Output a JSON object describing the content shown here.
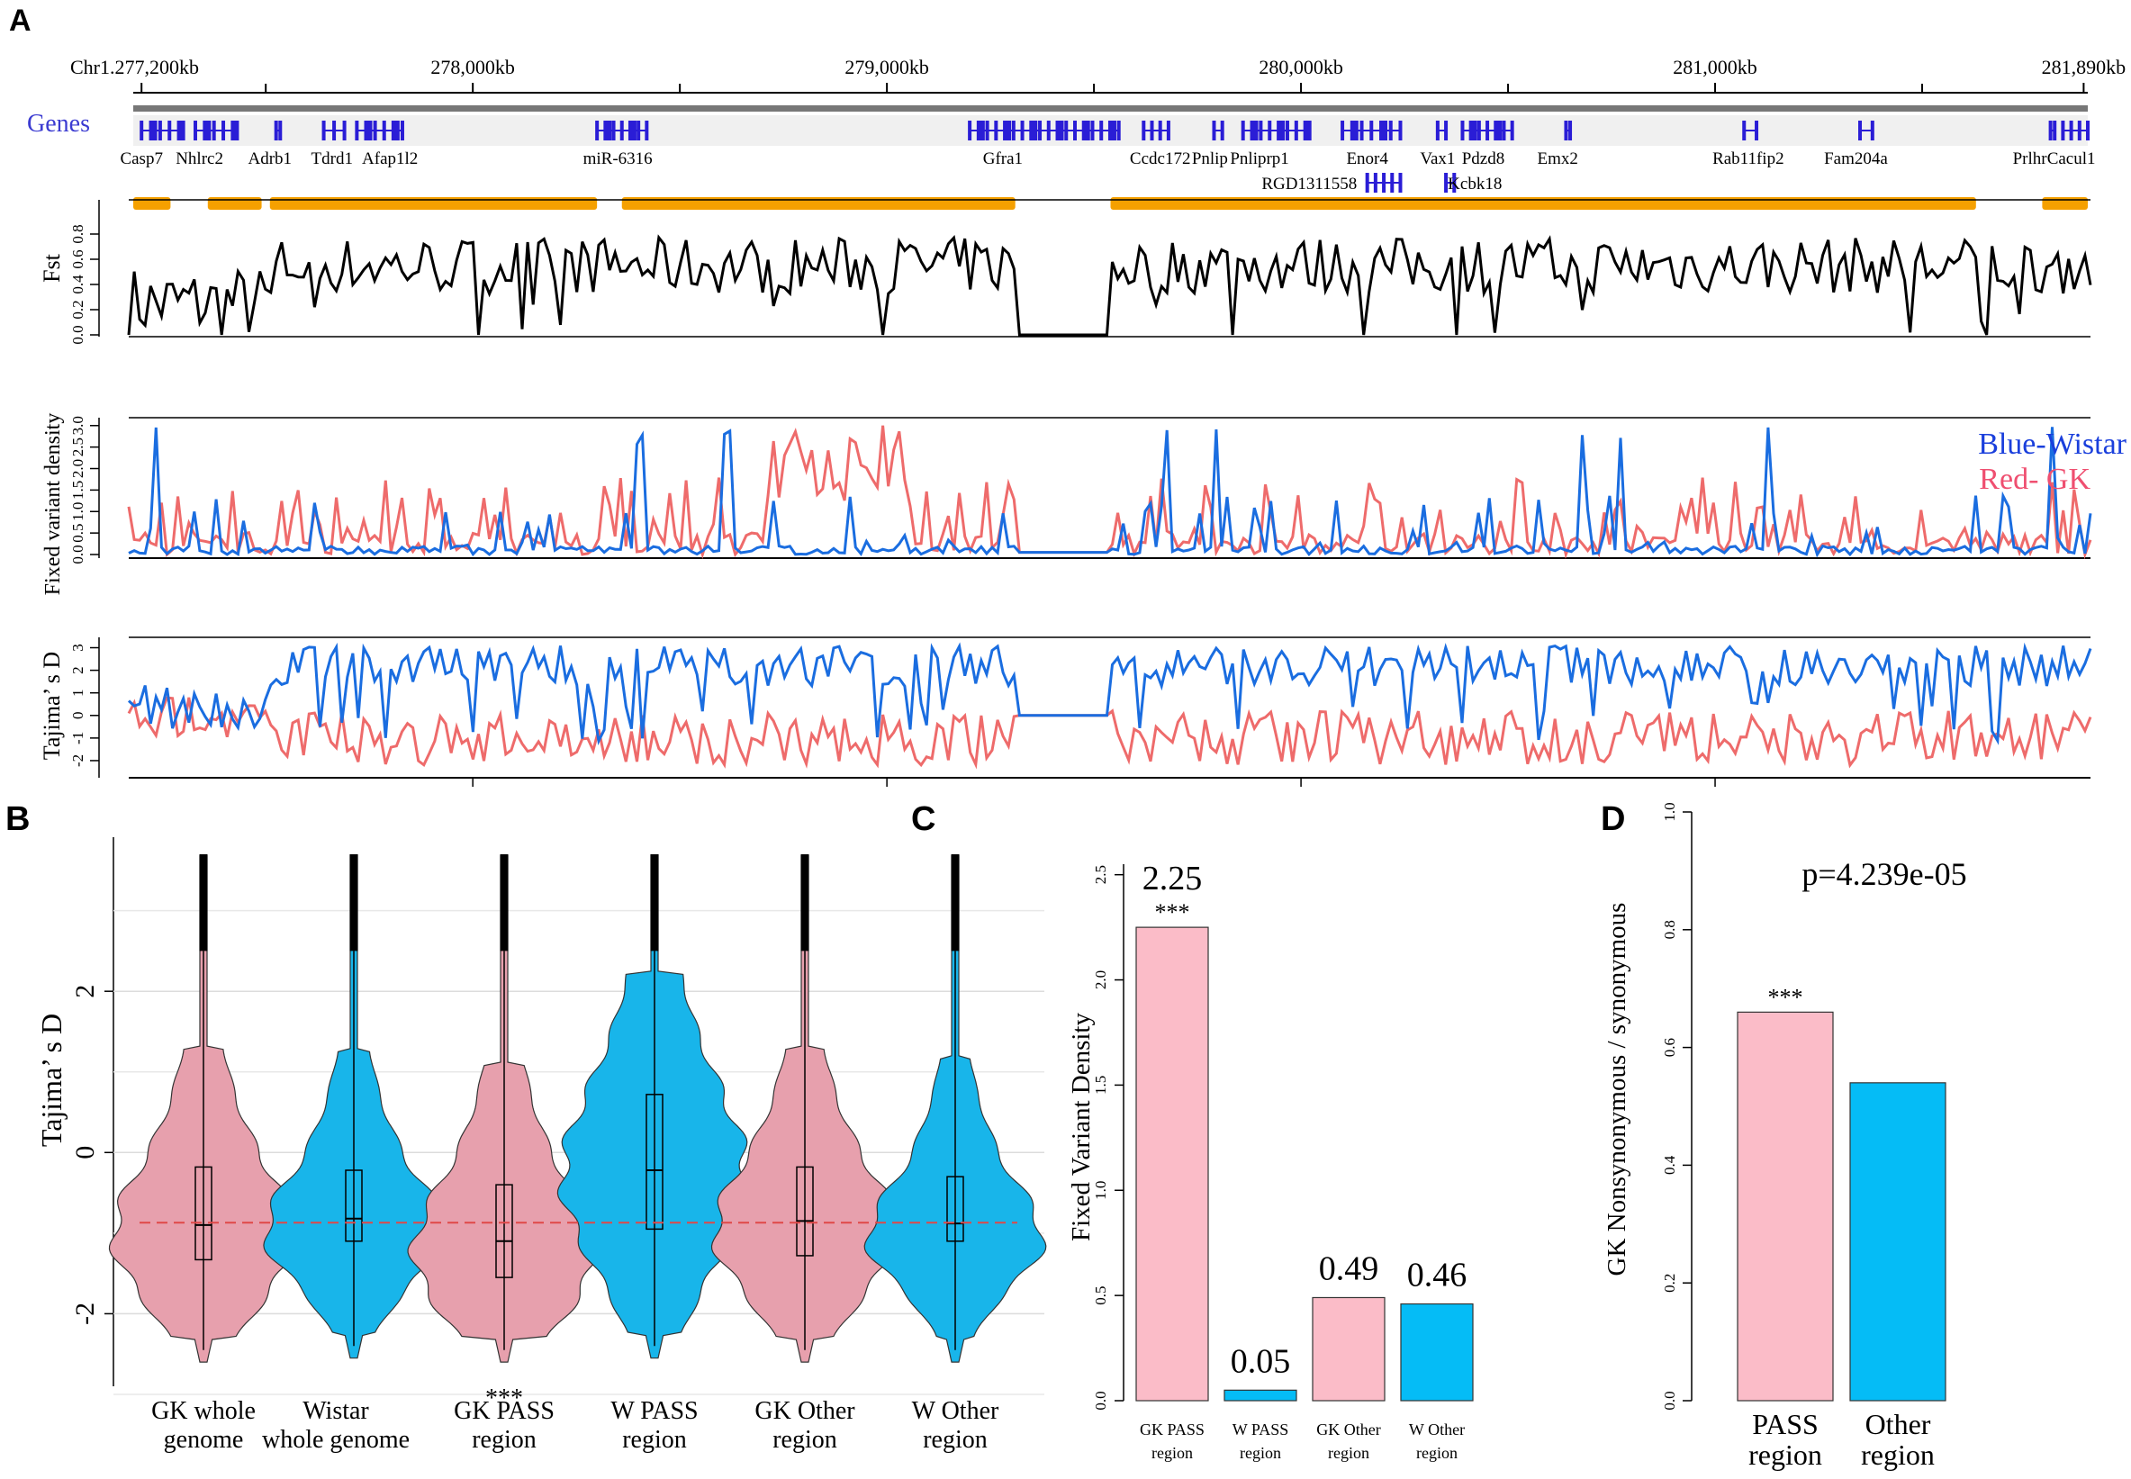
{
  "panel_labels": {
    "a": "A",
    "b": "B",
    "c": "C",
    "d": "D"
  },
  "panel_a": {
    "coords": [
      {
        "label": "Chr1.277,200kb",
        "pos": 277200
      },
      {
        "label": "278,000kb",
        "pos": 278000
      },
      {
        "label": "279,000kb",
        "pos": 279000
      },
      {
        "label": "280,000kb",
        "pos": 280000
      },
      {
        "label": "281,000kb",
        "pos": 281000
      },
      {
        "label": "281,890kb",
        "pos": 281890
      }
    ],
    "minor_ticks": [
      277500,
      278500,
      279500,
      280500,
      281500
    ],
    "range": [
      277180,
      281900
    ],
    "genes_label": "Genes",
    "genes": [
      {
        "name": "Casp7",
        "start": 277200,
        "end": 277290,
        "label_pos": 277200,
        "row": 0
      },
      {
        "name": "Nhlrc2",
        "start": 277330,
        "end": 277420,
        "label_pos": 277340,
        "row": 0
      },
      {
        "name": "Adrb1",
        "start": 277525,
        "end": 277535,
        "label_pos": 277510,
        "row": 0
      },
      {
        "name": "Tdrd1",
        "start": 277640,
        "end": 277690,
        "label_pos": 277660,
        "row": 0
      },
      {
        "name": "Afap1l2",
        "start": 277720,
        "end": 277830,
        "label_pos": 277800,
        "row": 0
      },
      {
        "name": "miR-6316",
        "start": 278300,
        "end": 278420,
        "label_pos": 278350,
        "row": 0
      },
      {
        "name": "Gfra1",
        "start": 279200,
        "end": 279560,
        "label_pos": 279280,
        "row": 0
      },
      {
        "name": "Ccdc172",
        "start": 279620,
        "end": 279680,
        "label_pos": 279660,
        "row": 0
      },
      {
        "name": "Pnlip",
        "start": 279790,
        "end": 279810,
        "label_pos": 279780,
        "row": 0
      },
      {
        "name": "Pnliprp1",
        "start": 279860,
        "end": 280010,
        "label_pos": 279900,
        "row": 0
      },
      {
        "name": "Enor4",
        "start": 280100,
        "end": 280240,
        "label_pos": 280160,
        "row": 0
      },
      {
        "name": "Vax1",
        "start": 280330,
        "end": 280350,
        "label_pos": 280330,
        "row": 0
      },
      {
        "name": "Pdzd8",
        "start": 280390,
        "end": 280510,
        "label_pos": 280440,
        "row": 0
      },
      {
        "name": "Emx2",
        "start": 280640,
        "end": 280650,
        "label_pos": 280620,
        "row": 0
      },
      {
        "name": "Rab11fip2",
        "start": 281070,
        "end": 281100,
        "label_pos": 281080,
        "row": 0
      },
      {
        "name": "Fam204a",
        "start": 281350,
        "end": 281380,
        "label_pos": 281340,
        "row": 0
      },
      {
        "name": "Prlhr",
        "start": 281810,
        "end": 281820,
        "label_pos": 281760,
        "row": 0
      },
      {
        "name": "Cacul1",
        "start": 281840,
        "end": 281900,
        "label_pos": 281860,
        "row": 0
      },
      {
        "name": "RGD1311558",
        "start": 280160,
        "end": 280240,
        "label_pos": 280020,
        "row": 1
      },
      {
        "name": "Kcbk18",
        "start": 280350,
        "end": 280370,
        "label_pos": 280420,
        "row": 1
      }
    ],
    "pass_regions": [
      [
        277180,
        277270
      ],
      [
        277360,
        277490
      ],
      [
        277510,
        278300
      ],
      [
        278360,
        279310
      ],
      [
        279540,
        281630
      ],
      [
        281790,
        281900
      ]
    ],
    "legend_blue": "Blue-Wistar",
    "legend_red": "Red- GK",
    "colors": {
      "gene": "#2a1dd6",
      "pass": "#f5a000",
      "wistar": "#1a6de0",
      "gk": "#ee6b6b",
      "genes_label": "#3b3bd1"
    },
    "fst": {
      "ylabel": "Fst",
      "ticks": [
        "0.0",
        "0.2",
        "0.4",
        "0.6",
        "0.8"
      ],
      "tick_values": [
        0,
        0.2,
        0.4,
        0.6,
        0.8
      ],
      "ylim": [
        0,
        1.0
      ]
    },
    "fvd": {
      "ylabel": "Fixed variant density",
      "ticks": [
        "0.0",
        "0.5",
        "1.0",
        "1.5",
        "2.0",
        "2.5",
        "3.0"
      ],
      "tick_values": [
        0,
        0.5,
        1.0,
        1.5,
        2.0,
        2.5,
        3.0
      ],
      "ylim": [
        0,
        3.1
      ]
    },
    "taj": {
      "ylabel": "Tajima’ s D",
      "ticks": [
        "-2",
        "-1",
        "0",
        "1",
        "2",
        "3"
      ],
      "tick_values": [
        -2,
        -1,
        0,
        1,
        2,
        3
      ],
      "ylim": [
        -2.6,
        3.3
      ]
    }
  },
  "chart_data": [
    {
      "panel": "B",
      "type": "violin",
      "ylabel": "Tajima’ s D",
      "yticks": [
        "-2",
        "0",
        "2"
      ],
      "ytick_values": [
        -2,
        0,
        2
      ],
      "ylim": [
        -2.9,
        3.8
      ],
      "reference_line": -0.87,
      "groups": [
        {
          "label": [
            "GK whole",
            "genome"
          ],
          "color": "#e7a0ad",
          "q1": -1.33,
          "median": -0.9,
          "q3": -0.18,
          "lo": -2.6,
          "hi": 3.7,
          "mark": ""
        },
        {
          "label": [
            "Wistar",
            "whole genome"
          ],
          "color": "#18b5ea",
          "q1": -1.1,
          "median": -0.82,
          "q3": -0.22,
          "lo": -2.55,
          "hi": 3.7,
          "mark": ""
        },
        {
          "label": [
            "GK PASS",
            "region"
          ],
          "color": "#e7a0ad",
          "q1": -1.55,
          "median": -1.1,
          "q3": -0.4,
          "lo": -2.6,
          "hi": 3.7,
          "mark": "***"
        },
        {
          "label": [
            "W  PASS",
            "region"
          ],
          "color": "#18b5ea",
          "q1": -0.95,
          "median": -0.22,
          "q3": 0.72,
          "lo": -2.55,
          "hi": 3.7,
          "mark": ""
        },
        {
          "label": [
            "GK Other",
            "region"
          ],
          "color": "#e7a0ad",
          "q1": -1.28,
          "median": -0.85,
          "q3": -0.18,
          "lo": -2.6,
          "hi": 3.7,
          "mark": ""
        },
        {
          "label": [
            "W Other",
            "region"
          ],
          "color": "#18b5ea",
          "q1": -1.1,
          "median": -0.88,
          "q3": -0.3,
          "lo": -2.6,
          "hi": 3.7,
          "mark": ""
        }
      ]
    },
    {
      "panel": "C",
      "type": "bar",
      "ylabel": "Fixed Variant Density",
      "yticks": [
        "0.0",
        "0.5",
        "1.0",
        "1.5",
        "2.0",
        "2.5"
      ],
      "ytick_values": [
        0,
        0.5,
        1.0,
        1.5,
        2.0,
        2.5
      ],
      "ylim": [
        0,
        2.55
      ],
      "categories": [
        [
          "GK PASS",
          "region"
        ],
        [
          "W PASS",
          "region"
        ],
        [
          "GK Other",
          "region"
        ],
        [
          "W Other",
          "region"
        ]
      ],
      "values": [
        2.25,
        0.05,
        0.49,
        0.46
      ],
      "value_labels": [
        "2.25",
        "0.05",
        "0.49",
        "0.46"
      ],
      "marks": [
        "***",
        "",
        "",
        ""
      ],
      "colors": [
        "#fbbcc8",
        "#05bcf6",
        "#fbbcc8",
        "#05bcf6"
      ]
    },
    {
      "panel": "D",
      "type": "bar",
      "ylabel": "GK Nonsynonymous / synonymous",
      "yticks": [
        "0.0",
        "0.2",
        "0.4",
        "0.6",
        "0.8",
        "1.0"
      ],
      "ytick_values": [
        0,
        0.2,
        0.4,
        0.6,
        0.8,
        1.0
      ],
      "ylim": [
        0,
        1.0
      ],
      "annotation": "p=4.239e-05",
      "categories": [
        [
          "PASS",
          "region"
        ],
        [
          "Other",
          "region"
        ]
      ],
      "values": [
        0.66,
        0.54
      ],
      "marks": [
        "***",
        ""
      ],
      "colors": [
        "#fbbcc8",
        "#05bcf6"
      ]
    }
  ]
}
